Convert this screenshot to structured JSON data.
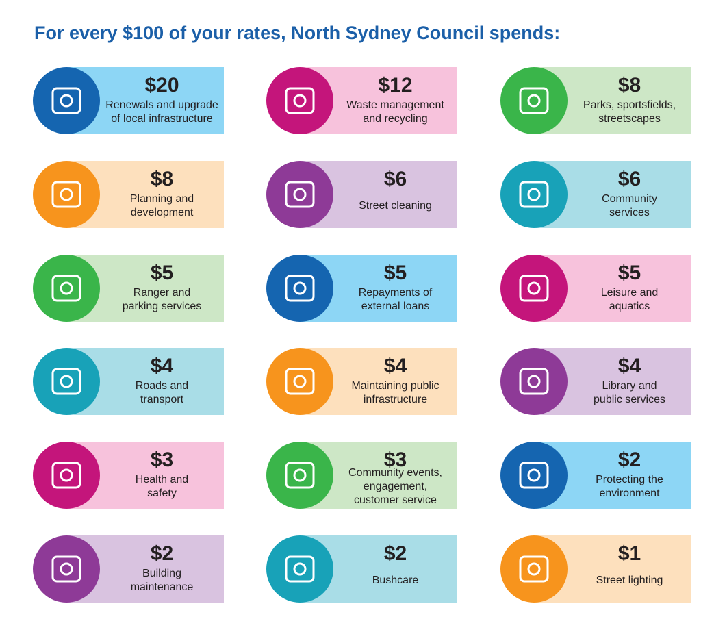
{
  "header": {
    "title": "For every $100 of your rates, North Sydney Council spends:"
  },
  "items": [
    {
      "amount": "$20",
      "label": [
        "Renewals and upgrade",
        "of local infrastructure"
      ],
      "circle_color": "#1565b0",
      "bg_color": "#8dd6f5"
    },
    {
      "amount": "$12",
      "label": [
        "Waste management",
        "and recycling"
      ],
      "circle_color": "#c4157b",
      "bg_color": "#f7c2dc"
    },
    {
      "amount": "$8",
      "label": [
        "Parks, sportsfields,",
        "streetscapes"
      ],
      "circle_color": "#3ab54a",
      "bg_color": "#cde7c6"
    },
    {
      "amount": "$8",
      "label": [
        "Planning and",
        "development"
      ],
      "circle_color": "#f7941d",
      "bg_color": "#fde0bd"
    },
    {
      "amount": "$6",
      "label": [
        "Street cleaning"
      ],
      "circle_color": "#8e3a97",
      "bg_color": "#d9c3e0"
    },
    {
      "amount": "$6",
      "label": [
        "Community",
        "services"
      ],
      "circle_color": "#18a2b8",
      "bg_color": "#a9dde7"
    },
    {
      "amount": "$5",
      "label": [
        "Ranger and",
        "parking services"
      ],
      "circle_color": "#3ab54a",
      "bg_color": "#cde7c6"
    },
    {
      "amount": "$5",
      "label": [
        "Repayments of",
        "external loans"
      ],
      "circle_color": "#1565b0",
      "bg_color": "#8dd6f5"
    },
    {
      "amount": "$5",
      "label": [
        "Leisure and",
        "aquatics"
      ],
      "circle_color": "#c4157b",
      "bg_color": "#f7c2dc"
    },
    {
      "amount": "$4",
      "label": [
        "Roads and",
        "transport"
      ],
      "circle_color": "#18a2b8",
      "bg_color": "#a9dde7"
    },
    {
      "amount": "$4",
      "label": [
        "Maintaining public",
        "infrastructure"
      ],
      "circle_color": "#f7941d",
      "bg_color": "#fde0bd"
    },
    {
      "amount": "$4",
      "label": [
        "Library and",
        "public services"
      ],
      "circle_color": "#8e3a97",
      "bg_color": "#d9c3e0"
    },
    {
      "amount": "$3",
      "label": [
        "Health and",
        "safety"
      ],
      "circle_color": "#c4157b",
      "bg_color": "#f7c2dc"
    },
    {
      "amount": "$3",
      "label": [
        "Community events,",
        "engagement,",
        "customer service"
      ],
      "circle_color": "#3ab54a",
      "bg_color": "#cde7c6"
    },
    {
      "amount": "$2",
      "label": [
        "Protecting the",
        "environment"
      ],
      "circle_color": "#1565b0",
      "bg_color": "#8dd6f5"
    },
    {
      "amount": "$2",
      "label": [
        "Building",
        "maintenance"
      ],
      "circle_color": "#8e3a97",
      "bg_color": "#d9c3e0"
    },
    {
      "amount": "$2",
      "label": [
        "Bushcare"
      ],
      "circle_color": "#18a2b8",
      "bg_color": "#a9dde7"
    },
    {
      "amount": "$1",
      "label": [
        "Street lighting"
      ],
      "circle_color": "#f7941d",
      "bg_color": "#fde0bd"
    }
  ]
}
